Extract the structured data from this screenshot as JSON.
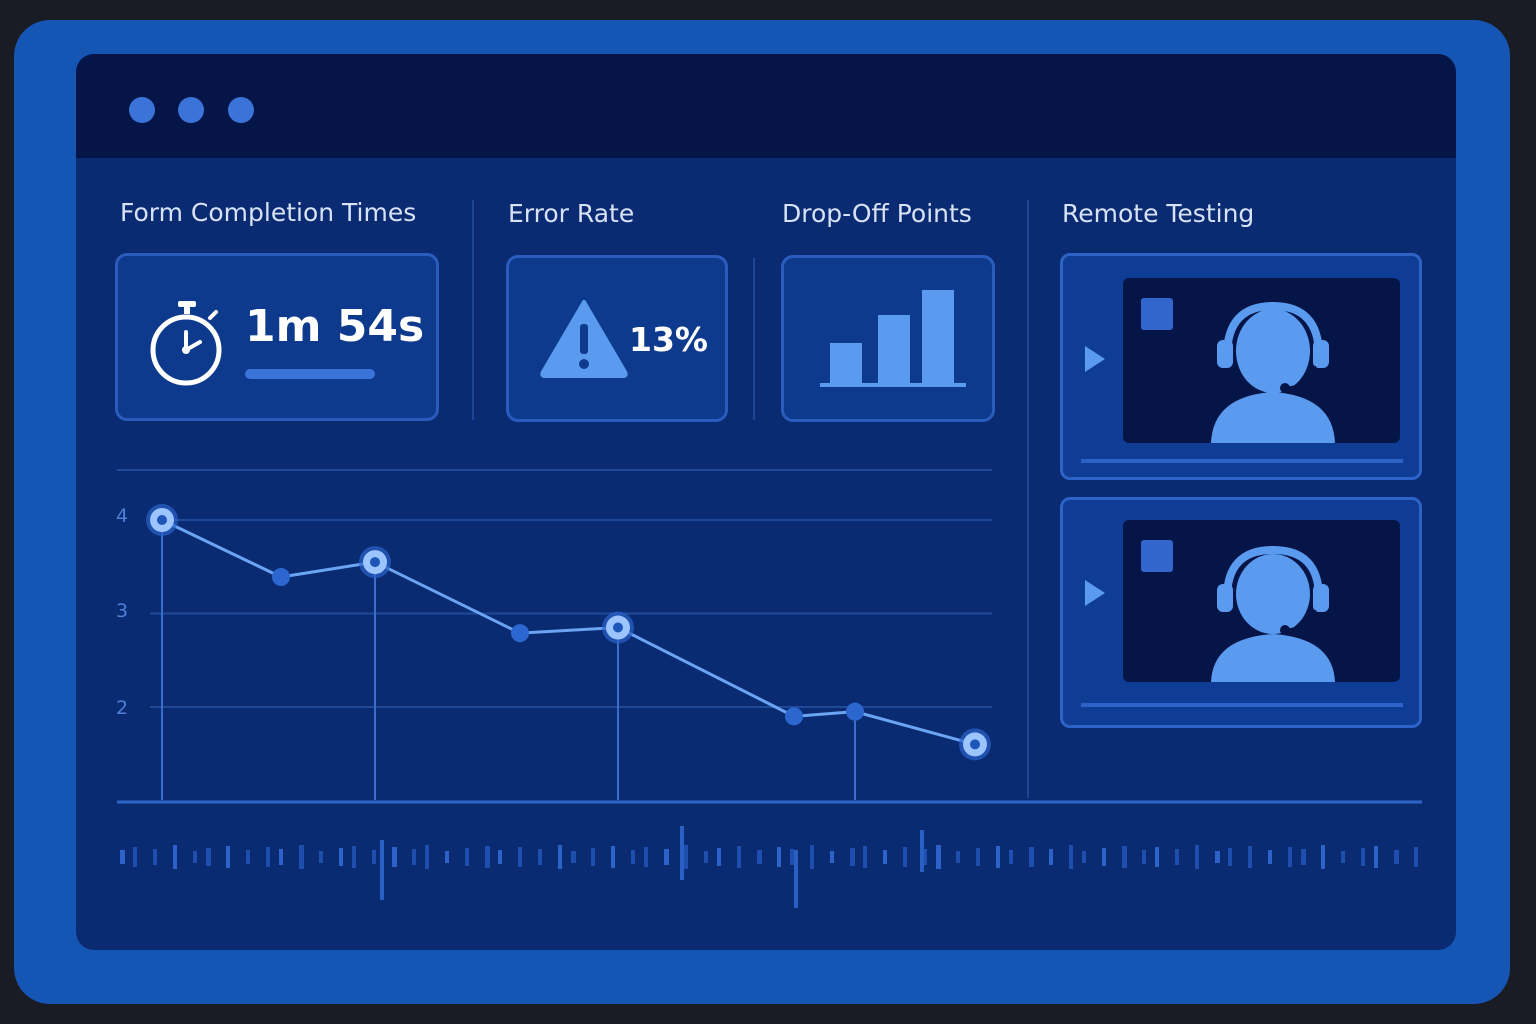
{
  "sections": {
    "form_completion": "Form Completion Times",
    "error_rate": "Error Rate",
    "drop_off": "Drop-Off Points",
    "remote_testing": "Remote Testing"
  },
  "metrics": {
    "completion_time": "1m 54s",
    "error_rate": "13%"
  },
  "icons": {
    "window_controls": [
      "dot",
      "dot",
      "dot"
    ],
    "completion": "stopwatch-icon",
    "error": "warning-icon",
    "drop_off": "bar-chart-icon",
    "video": [
      "play-icon",
      "headset-person-icon"
    ]
  },
  "colors": {
    "background": "#191c24",
    "frame": "#1556b4",
    "window": "#0a2b72",
    "titlebar": "#061547",
    "accent": "#5b9bef",
    "line": "#6aa4f2"
  },
  "drop_off_bars": [
    0.4,
    0.68,
    0.93
  ],
  "chart_data": {
    "type": "line",
    "title": "",
    "xlabel": "",
    "ylabel": "",
    "y_ticks": [
      "4",
      "3",
      "2"
    ],
    "ylim": [
      1.4,
      4.2
    ],
    "grid": true,
    "series": [
      {
        "x": [
          0,
          1,
          2,
          3,
          4,
          5,
          6,
          7
        ],
        "values": [
          4.0,
          3.39,
          3.55,
          2.79,
          2.85,
          1.9,
          1.95,
          1.6
        ],
        "highlighted": [
          true,
          false,
          true,
          false,
          true,
          false,
          false,
          true
        ]
      }
    ]
  }
}
